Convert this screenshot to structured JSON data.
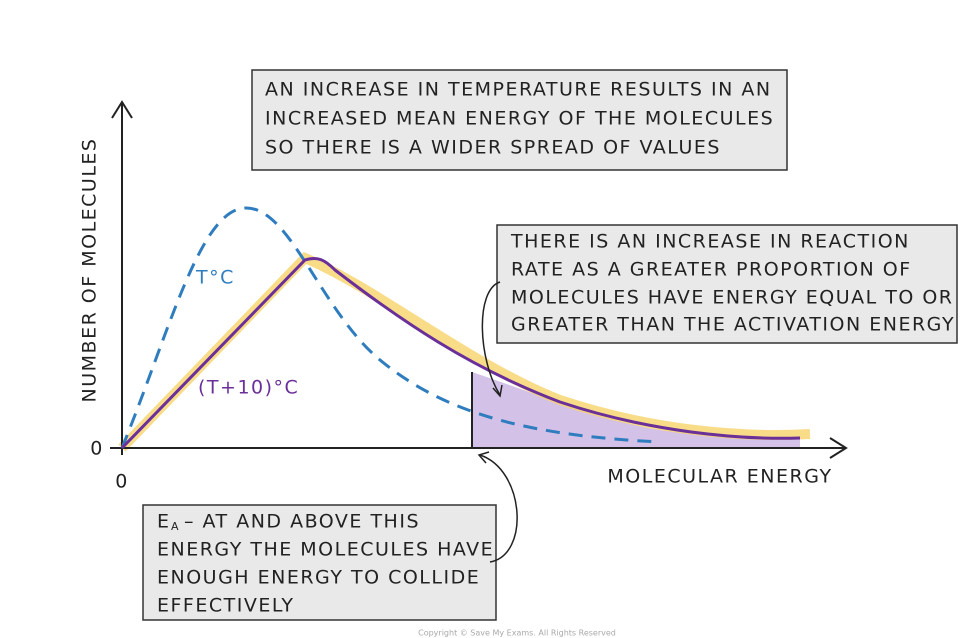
{
  "top_box": {
    "lines": [
      "AN INCREASE IN TEMPERATURE RESULTS IN AN",
      "INCREASED MEAN ENERGY OF THE MOLECULES",
      "SO THERE IS A WIDER SPREAD OF VALUES"
    ]
  },
  "right_box": {
    "lines": [
      "THERE IS AN INCREASE IN REACTION",
      "RATE AS A GREATER PROPORTION OF",
      "MOLECULES HAVE ENERGY EQUAL TO OR",
      "GREATER THAN THE ACTIVATION ENERGY"
    ]
  },
  "bottom_box": {
    "symbol": "E",
    "subscript": "A",
    "lines": [
      "– AT AND ABOVE THIS",
      "ENERGY THE MOLECULES HAVE",
      "ENOUGH ENERGY TO COLLIDE",
      "EFFECTIVELY"
    ]
  },
  "axes": {
    "y_label": "NUMBER OF MOLECULES",
    "x_label": "MOLECULAR ENERGY",
    "y_origin": "0",
    "x_origin": "0"
  },
  "curves": {
    "lower": "T°C",
    "higher": "(T+10)°C"
  },
  "footer": "Copyright © Save My Exams. All Rights Reserved"
}
